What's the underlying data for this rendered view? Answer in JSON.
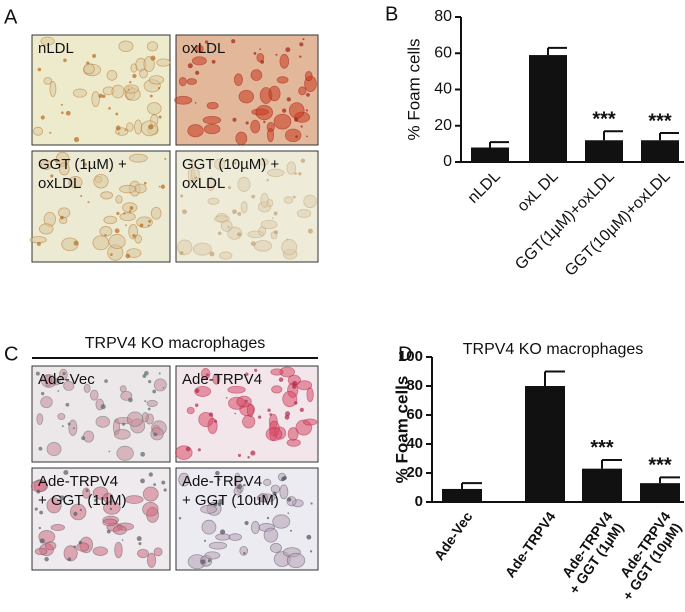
{
  "panels": {
    "A": {
      "label": "A",
      "images": [
        [
          "nLDL"
        ],
        [
          "oxLDL"
        ],
        [
          "GGT (1µM) +",
          "oxLDL"
        ],
        [
          "GGT (10µM) +",
          "oxLDL"
        ]
      ]
    },
    "C": {
      "label": "C",
      "header": "TRPV4 KO macrophages",
      "images": [
        [
          "Ade-Vec"
        ],
        [
          "Ade-TRPV4"
        ],
        [
          "Ade-TRPV4",
          "+ GGT (1uM)"
        ],
        [
          "Ade-TRPV4",
          "+ GGT (10uM)"
        ]
      ]
    }
  },
  "chart_data": [
    {
      "type": "bar",
      "panel_label": "B",
      "ylabel": "% Foam cells",
      "categories": [
        "nLDL",
        "oxL DL",
        "GGT(1µM)+oxLDL",
        "GGT(10µM)+oxLDL"
      ],
      "values": [
        8,
        59,
        12,
        12
      ],
      "errors": [
        3,
        4,
        5,
        4
      ],
      "color": "#111111",
      "annotations": [
        {
          "index": 2,
          "text": "***"
        },
        {
          "index": 3,
          "text": "***"
        }
      ],
      "ylim": [
        0,
        80
      ],
      "yticks": [
        0,
        20,
        40,
        60,
        80
      ]
    },
    {
      "type": "bar",
      "panel_label": "D",
      "title": "TRPV4 KO macrophages",
      "ylabel": "% Foam cells",
      "categories": [
        [
          "Ade-Vec"
        ],
        [
          "Ade-TRPV4"
        ],
        [
          "Ade-TRPV4",
          "+ GGT (1µM)"
        ],
        [
          "Ade-TRPV4",
          "+ GGT (10µM)"
        ]
      ],
      "values": [
        9,
        80,
        23,
        13
      ],
      "errors": [
        4,
        10,
        6,
        4
      ],
      "color": "#111111",
      "annotations": [
        {
          "index": 2,
          "text": "***"
        },
        {
          "index": 3,
          "text": "***"
        }
      ],
      "ylim": [
        0,
        100
      ],
      "yticks": [
        0,
        20,
        40,
        60,
        80,
        100
      ]
    }
  ]
}
